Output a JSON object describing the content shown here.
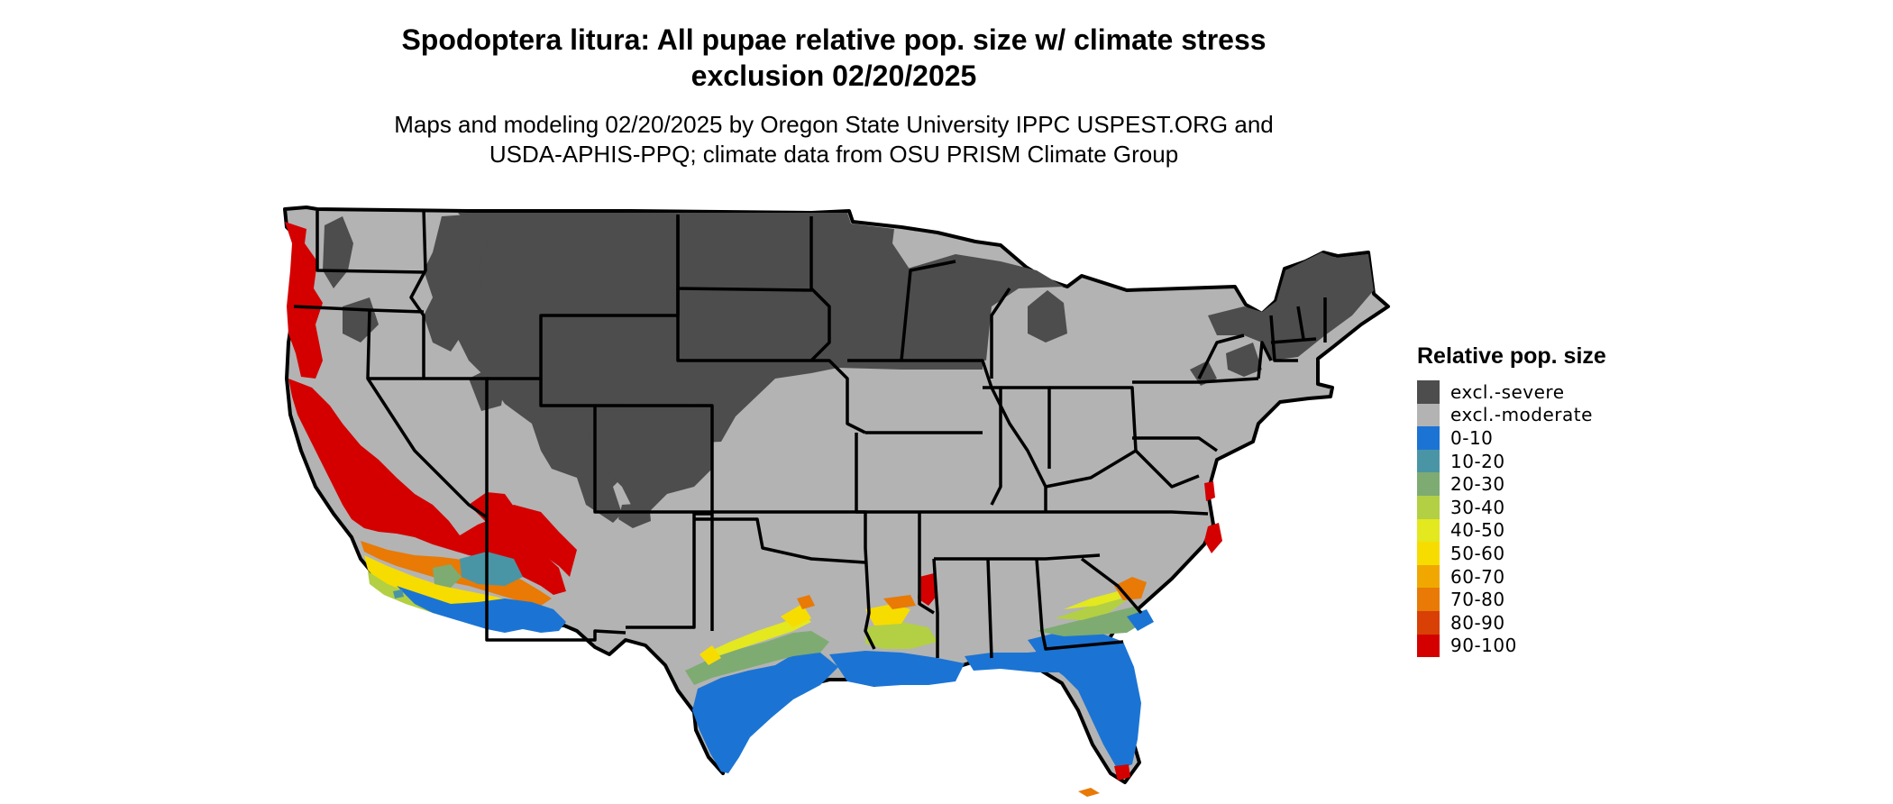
{
  "title": {
    "line1": "Spodoptera litura: All pupae relative pop. size w/ climate stress",
    "line2": "exclusion 02/20/2025"
  },
  "subtitle": {
    "line1": "Maps and modeling 02/20/2025 by Oregon State University IPPC USPEST.ORG and",
    "line2": "USDA-APHIS-PPQ; climate data from OSU PRISM Climate Group"
  },
  "legend": {
    "title": "Relative pop. size",
    "items": [
      {
        "label": "excl.-severe",
        "color": "#4d4d4d"
      },
      {
        "label": "excl.-moderate",
        "color": "#b3b3b3"
      },
      {
        "label": "0-10",
        "color": "#1b74d4"
      },
      {
        "label": "10-20",
        "color": "#4a95a5"
      },
      {
        "label": "20-30",
        "color": "#7eab72"
      },
      {
        "label": "30-40",
        "color": "#b3cf44"
      },
      {
        "label": "40-50",
        "color": "#e3e81f"
      },
      {
        "label": "50-60",
        "color": "#f7dc00"
      },
      {
        "label": "60-70",
        "color": "#f0a800"
      },
      {
        "label": "70-80",
        "color": "#e87a05"
      },
      {
        "label": "80-90",
        "color": "#d94005"
      },
      {
        "label": "90-100",
        "color": "#d40000"
      }
    ]
  }
}
